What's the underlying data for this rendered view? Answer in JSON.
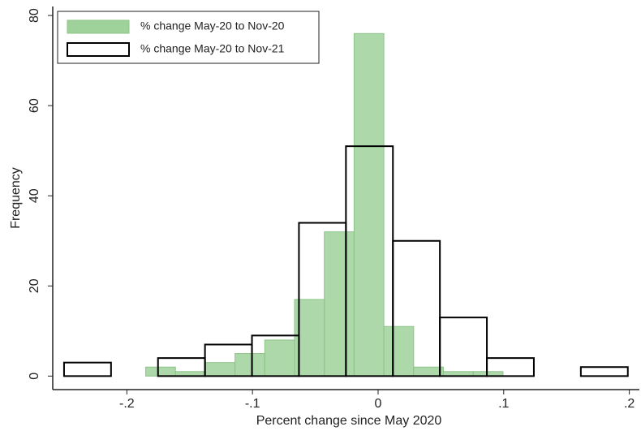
{
  "chart_data": {
    "type": "histogram",
    "x_label": "Percent change since May 2020",
    "y_label": "Frequency",
    "xlim": [
      -0.259,
      0.208
    ],
    "ylim": [
      -3,
      82
    ],
    "xticks": [
      {
        "value": -0.2,
        "label": "-.2"
      },
      {
        "value": -0.1,
        "label": "-.1"
      },
      0,
      {
        "value": 0.1,
        "label": ".1"
      },
      {
        "value": 0.2,
        "label": ".2"
      }
    ],
    "yticks": [
      0,
      20,
      40,
      60,
      80
    ],
    "legend": "top-left",
    "series": [
      {
        "name": "% change May-20 to Nov-20",
        "color": "#9fd19a",
        "bins": [
          -0.185,
          -0.1613,
          -0.1376,
          -0.1139,
          -0.0902,
          -0.0665,
          -0.0428,
          -0.0191,
          0.0046,
          0.0283,
          0.052,
          0.0757,
          0.0994
        ],
        "values": [
          2,
          1,
          3,
          5,
          8,
          17,
          32,
          76,
          11,
          2,
          1,
          1
        ]
      },
      {
        "name": "% change May-20 to Nov-21",
        "color": "#000000",
        "bins": [
          -0.25,
          -0.2126,
          -0.1752,
          -0.1378,
          -0.1004,
          -0.063,
          -0.0256,
          0.0118,
          0.0492,
          0.0866,
          0.124,
          0.1614,
          0.1988
        ],
        "values": [
          3,
          0,
          4,
          7,
          9,
          34,
          51,
          30,
          13,
          4,
          0,
          2
        ]
      }
    ]
  }
}
